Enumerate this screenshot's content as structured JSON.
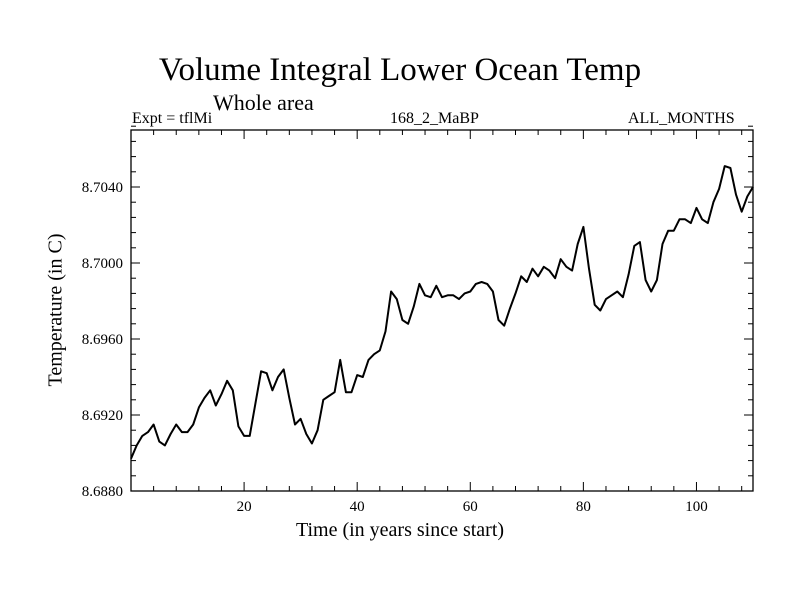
{
  "chart_data": {
    "type": "line",
    "title": "Volume Integral Lower Ocean Temp",
    "subtitle": "Whole area",
    "left_string": "Expt = tflMi",
    "center_string": "168_2_MaBP",
    "right_string": "ALL_MONTHS",
    "xlabel": "Time (in years since start)",
    "ylabel": "Temperature (in C)",
    "xlim": [
      0,
      110
    ],
    "ylim": [
      8.688,
      8.707
    ],
    "xticks": [
      20,
      40,
      60,
      80,
      100
    ],
    "yticks": [
      8.688,
      8.692,
      8.696,
      8.7,
      8.704
    ],
    "ytick_labels": [
      "8.6880",
      "8.6920",
      "8.6960",
      "8.7000",
      "8.7040"
    ],
    "grid": false,
    "x": [
      0,
      1,
      2,
      3,
      4,
      5,
      6,
      7,
      8,
      9,
      10,
      11,
      12,
      13,
      14,
      15,
      16,
      17,
      18,
      19,
      20,
      21,
      22,
      23,
      24,
      25,
      26,
      27,
      28,
      29,
      30,
      31,
      32,
      33,
      34,
      35,
      36,
      37,
      38,
      39,
      40,
      41,
      42,
      43,
      44,
      45,
      46,
      47,
      48,
      49,
      50,
      51,
      52,
      53,
      54,
      55,
      56,
      57,
      58,
      59,
      60,
      61,
      62,
      63,
      64,
      65,
      66,
      67,
      68,
      69,
      70,
      71,
      72,
      73,
      74,
      75,
      76,
      77,
      78,
      79,
      80,
      81,
      82,
      83,
      84,
      85,
      86,
      87,
      88,
      89,
      90,
      91,
      92,
      93,
      94,
      95,
      96,
      97,
      98,
      99,
      100,
      101,
      102,
      103,
      104,
      105,
      106,
      107,
      108,
      109,
      110
    ],
    "values": [
      8.6897,
      8.6904,
      8.6909,
      8.6911,
      8.6915,
      8.6906,
      8.6904,
      8.691,
      8.6915,
      8.6911,
      8.6911,
      8.6915,
      8.6924,
      8.6929,
      8.6933,
      8.6925,
      8.6931,
      8.6938,
      8.6933,
      8.6914,
      8.6909,
      8.6909,
      8.6926,
      8.6943,
      8.6942,
      8.6933,
      8.694,
      8.6944,
      8.6929,
      8.6915,
      8.6918,
      8.691,
      8.6905,
      8.6912,
      8.6928,
      8.693,
      8.6932,
      8.6949,
      8.6932,
      8.6932,
      8.6941,
      8.694,
      8.6949,
      8.6952,
      8.6954,
      8.6964,
      8.6985,
      8.6981,
      8.697,
      8.6968,
      8.6977,
      8.6989,
      8.6983,
      8.6982,
      8.6988,
      8.6982,
      8.6983,
      8.6983,
      8.6981,
      8.6984,
      8.6985,
      8.6989,
      8.699,
      8.6989,
      8.6985,
      8.697,
      8.6967,
      8.6976,
      8.6984,
      8.6993,
      8.699,
      8.6997,
      8.6993,
      8.6998,
      8.6996,
      8.6992,
      8.7002,
      8.6998,
      8.6996,
      8.701,
      8.7019,
      8.6997,
      8.6978,
      8.6975,
      8.6981,
      8.6983,
      8.6985,
      8.6982,
      8.6994,
      8.7009,
      8.7011,
      8.6991,
      8.6985,
      8.6991,
      8.701,
      8.7017,
      8.7017,
      8.7023,
      8.7023,
      8.7021,
      8.7029,
      8.7023,
      8.7021,
      8.7032,
      8.7039,
      8.7051,
      8.705,
      8.7036,
      8.7027,
      8.7035,
      8.704
    ]
  }
}
